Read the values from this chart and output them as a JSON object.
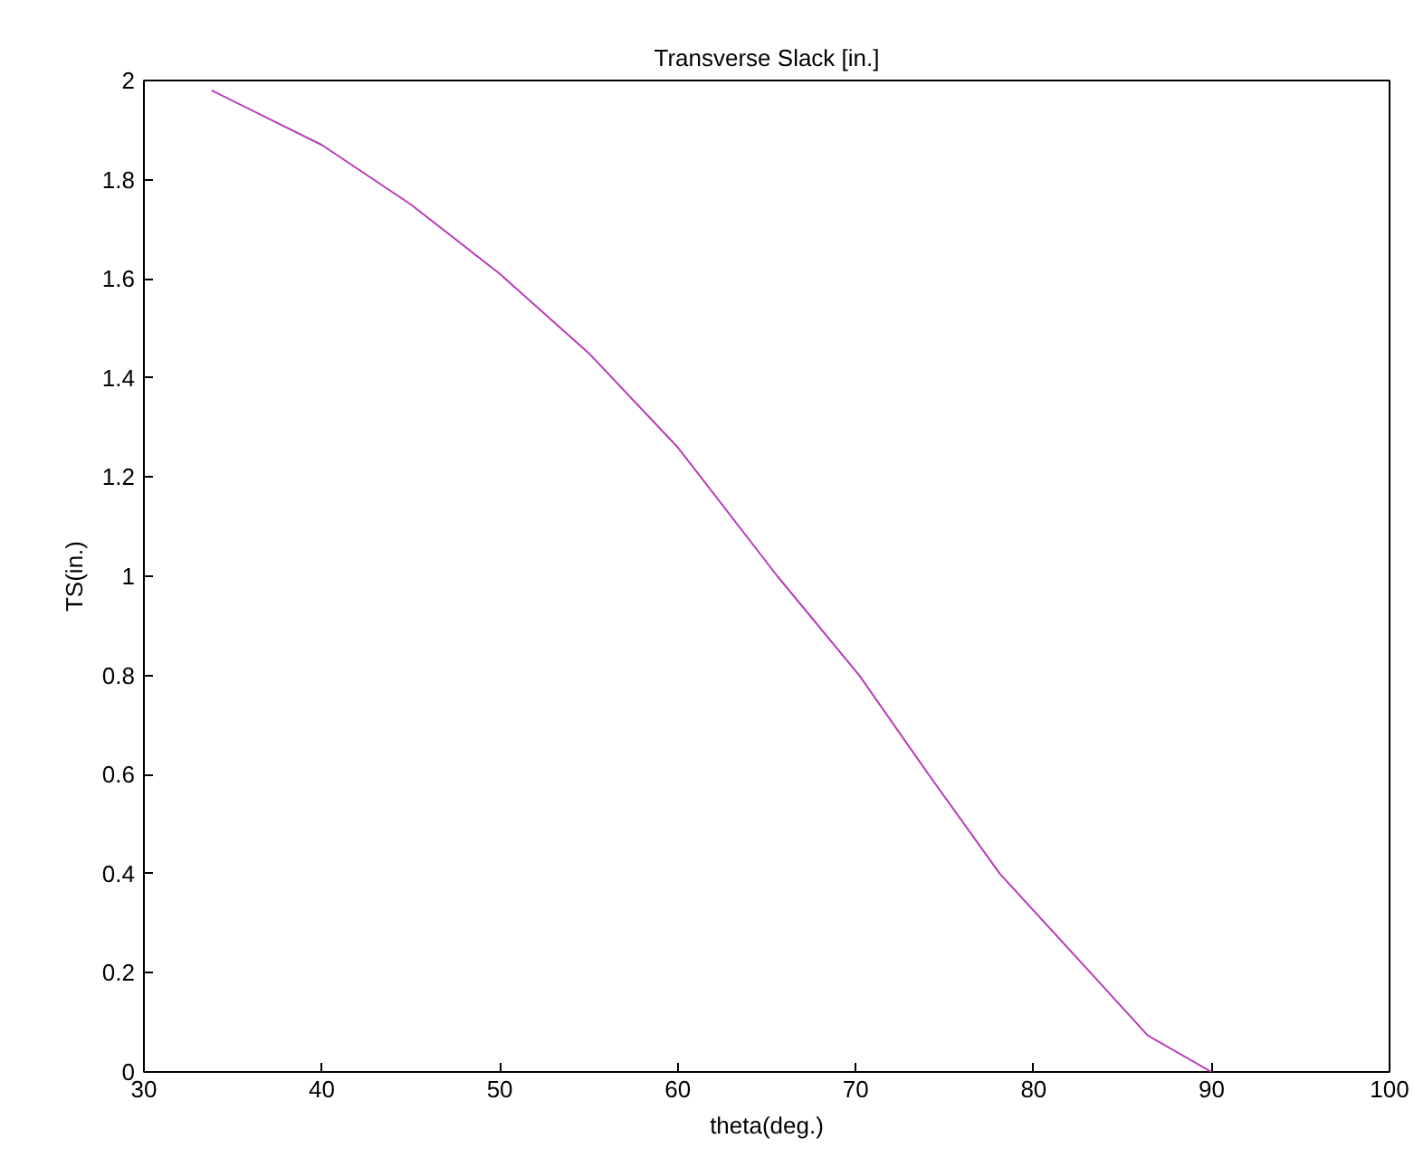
{
  "chart_data": {
    "type": "line",
    "title": "Transverse Slack [in.]",
    "xlabel": "theta(deg.)",
    "ylabel": "TS(in.)",
    "series": [
      {
        "color": "#b83ab8",
        "x": [
          33.8,
          40,
          45,
          50,
          55,
          60,
          65.6,
          70.2,
          74.1,
          78.1,
          83.2,
          86.4,
          90
        ],
        "values": [
          1.98,
          1.87,
          1.75,
          1.61,
          1.45,
          1.26,
          1.0,
          0.8,
          0.6,
          0.4,
          0.2,
          0.074,
          0
        ]
      }
    ],
    "xlim": [
      30,
      100
    ],
    "xticks": [
      30,
      40,
      50,
      60,
      70,
      80,
      90,
      100
    ],
    "ylim": [
      0,
      2
    ],
    "yticks": [
      0,
      0.2,
      0.4,
      0.6,
      0.8,
      1,
      1.2,
      1.4,
      1.6,
      1.8,
      2
    ],
    "grid": false
  }
}
